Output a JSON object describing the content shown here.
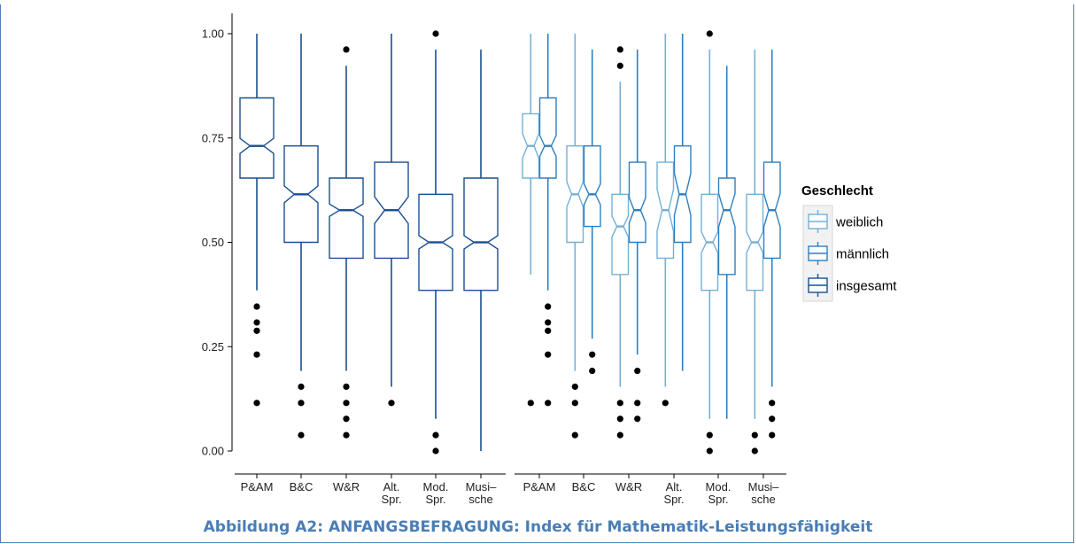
{
  "caption": "Abbildung A2: ANFANGSBEFRAGUNG: Index für Mathematik-Leistungsfähigkeit",
  "colors": {
    "weiblich": "#74b0d6",
    "maennlich": "#2e7fc0",
    "insgesamt": "#1a4f93",
    "frame": "#4f7fb5",
    "caption": "#4a7db6"
  },
  "chart_data": [
    {
      "type": "boxplot",
      "panel": "left",
      "categories": [
        [
          "P&AM"
        ],
        [
          "B&C"
        ],
        [
          "W&R"
        ],
        [
          "Alt.",
          "Spr."
        ],
        [
          "Mod.",
          "Spr."
        ],
        [
          "Musi–",
          "sche"
        ]
      ],
      "y_ticks": [
        "0.00",
        "0.25",
        "0.50",
        "0.75",
        "1.00"
      ],
      "ylim": [
        0,
        1
      ],
      "series": [
        {
          "name": "insgesamt",
          "boxes": [
            {
              "min": 0.385,
              "q1": 0.654,
              "median": 0.731,
              "q3": 0.846,
              "max": 1.0,
              "notch": 0.018,
              "outliers": [
                0.346,
                0.308,
                0.288,
                0.231,
                0.115
              ]
            },
            {
              "min": 0.192,
              "q1": 0.5,
              "median": 0.615,
              "q3": 0.731,
              "max": 1.0,
              "notch": 0.02,
              "outliers": [
                0.154,
                0.115,
                0.038
              ]
            },
            {
              "min": 0.192,
              "q1": 0.462,
              "median": 0.577,
              "q3": 0.654,
              "max": 0.923,
              "notch": 0.015,
              "outliers": [
                0.962,
                0.154,
                0.115,
                0.077,
                0.038
              ]
            },
            {
              "min": 0.154,
              "q1": 0.462,
              "median": 0.577,
              "q3": 0.692,
              "max": 1.0,
              "notch": 0.032,
              "outliers": [
                0.115
              ]
            },
            {
              "min": 0.077,
              "q1": 0.385,
              "median": 0.5,
              "q3": 0.615,
              "max": 0.962,
              "notch": 0.016,
              "outliers": [
                1.0,
                0.038,
                0.0
              ]
            },
            {
              "min": 0.0,
              "q1": 0.385,
              "median": 0.5,
              "q3": 0.654,
              "max": 0.962,
              "notch": 0.016,
              "outliers": []
            }
          ]
        }
      ]
    },
    {
      "type": "boxplot",
      "panel": "right",
      "categories": [
        [
          "P&AM"
        ],
        [
          "B&C"
        ],
        [
          "W&R"
        ],
        [
          "Alt.",
          "Spr."
        ],
        [
          "Mod.",
          "Spr."
        ],
        [
          "Musi–",
          "sche"
        ]
      ],
      "ylim": [
        0,
        1
      ],
      "series": [
        {
          "name": "weiblich",
          "boxes": [
            {
              "min": 0.423,
              "q1": 0.654,
              "median": 0.731,
              "q3": 0.808,
              "max": 1.0,
              "notch": 0.03,
              "outliers": [
                0.115
              ]
            },
            {
              "min": 0.192,
              "q1": 0.5,
              "median": 0.615,
              "q3": 0.731,
              "max": 1.0,
              "notch": 0.03,
              "outliers": [
                0.154,
                0.115,
                0.038
              ]
            },
            {
              "min": 0.154,
              "q1": 0.423,
              "median": 0.538,
              "q3": 0.615,
              "max": 0.885,
              "notch": 0.025,
              "outliers": [
                0.962,
                0.923,
                0.115,
                0.077,
                0.038
              ]
            },
            {
              "min": 0.154,
              "q1": 0.462,
              "median": 0.577,
              "q3": 0.692,
              "max": 1.0,
              "notch": 0.05,
              "outliers": [
                0.115
              ]
            },
            {
              "min": 0.077,
              "q1": 0.385,
              "median": 0.5,
              "q3": 0.615,
              "max": 0.962,
              "notch": 0.025,
              "outliers": [
                1.0,
                0.038,
                0.0
              ]
            },
            {
              "min": 0.077,
              "q1": 0.385,
              "median": 0.5,
              "q3": 0.615,
              "max": 0.962,
              "notch": 0.025,
              "outliers": [
                0.038,
                0.0
              ]
            }
          ]
        },
        {
          "name": "männlich",
          "boxes": [
            {
              "min": 0.385,
              "q1": 0.654,
              "median": 0.731,
              "q3": 0.846,
              "max": 1.0,
              "notch": 0.025,
              "outliers": [
                0.346,
                0.308,
                0.288,
                0.231,
                0.115
              ]
            },
            {
              "min": 0.269,
              "q1": 0.538,
              "median": 0.615,
              "q3": 0.731,
              "max": 0.962,
              "notch": 0.025,
              "outliers": [
                0.231,
                0.192
              ]
            },
            {
              "min": 0.231,
              "q1": 0.5,
              "median": 0.577,
              "q3": 0.692,
              "max": 0.962,
              "notch": 0.03,
              "outliers": [
                0.192,
                0.115,
                0.077
              ]
            },
            {
              "min": 0.192,
              "q1": 0.5,
              "median": 0.615,
              "q3": 0.731,
              "max": 1.0,
              "notch": 0.05,
              "outliers": []
            },
            {
              "min": 0.077,
              "q1": 0.423,
              "median": 0.577,
              "q3": 0.654,
              "max": 0.923,
              "notch": 0.04,
              "outliers": []
            },
            {
              "min": 0.154,
              "q1": 0.462,
              "median": 0.577,
              "q3": 0.692,
              "max": 0.962,
              "notch": 0.04,
              "outliers": [
                0.115,
                0.077,
                0.038
              ]
            }
          ]
        }
      ]
    }
  ],
  "legend": {
    "title": "Geschlecht",
    "items": [
      {
        "label": "weiblich",
        "key": "weiblich"
      },
      {
        "label": "männlich",
        "key": "maennlich"
      },
      {
        "label": "insgesamt",
        "key": "insgesamt"
      }
    ]
  }
}
